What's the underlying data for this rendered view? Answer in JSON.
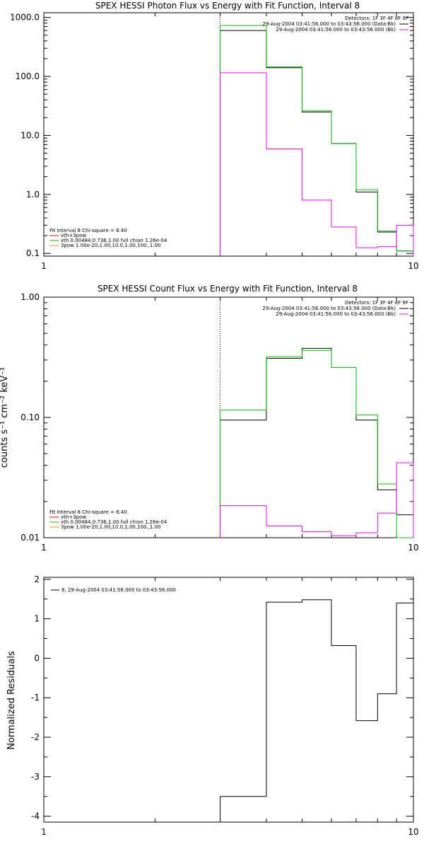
{
  "chart_data": [
    {
      "type": "line",
      "title": "SPEX HESSI Photon Flux vs Energy with Fit Function, Interval 8",
      "xscale": "log",
      "yscale": "log",
      "xlim": [
        1,
        10
      ],
      "ylim": [
        0.09,
        1200
      ],
      "xticks": [
        "1",
        "10"
      ],
      "yticks": [
        {
          "v": 1000,
          "label": "1000.0"
        },
        {
          "v": 100,
          "label": "100.0"
        },
        {
          "v": 10,
          "label": "10.0"
        },
        {
          "v": 1,
          "label": "1.0"
        },
        {
          "v": 0.1,
          "label": "0.1"
        }
      ],
      "xlabel": "",
      "ylabel": "",
      "vline": 3.0,
      "legend_right": [
        "Detectors: 1F 3F 4F 8F 9F",
        "29-Aug-2004 03:41:56.000 to 03:43:56.000 (Data-Bk)",
        "29-Aug-2004 03:41:56.000 to 03:43:56.000 (Bk)"
      ],
      "legend_left": [
        "Fit Interval 8   Chi-square = 8.40",
        "vth+3pow",
        "vth 0.00484,0.736,1.00  full chian 1.26e-04",
        "3pow 1.00e-20,1.00,10.0,1.00,100.,1.00"
      ],
      "edges": [
        3.0,
        4.0,
        5.0,
        6.0,
        7.0,
        8.0,
        9.0,
        10.0
      ],
      "series": [
        {
          "color": "#000000",
          "values": [
            600,
            140,
            25,
            7.3,
            1.1,
            0.23,
            0.11
          ]
        },
        {
          "color": "#00cc00",
          "values": [
            730,
            145,
            26,
            7.3,
            1.2,
            0.24,
            0.11
          ]
        },
        {
          "color": "#ff00ff",
          "values": [
            115,
            5.9,
            0.8,
            0.28,
            0.125,
            0.13,
            0.3
          ]
        }
      ]
    },
    {
      "type": "line",
      "title": "SPEX HESSI Count Flux vs Energy with Fit Function, Interval 8",
      "xscale": "log",
      "yscale": "log",
      "xlim": [
        1,
        10
      ],
      "ylim": [
        0.01,
        1.0
      ],
      "xticks": [
        "1",
        "10"
      ],
      "yticks": [
        {
          "v": 1.0,
          "label": "1.00"
        },
        {
          "v": 0.1,
          "label": "0.10"
        },
        {
          "v": 0.01,
          "label": "0.01"
        }
      ],
      "xlabel": "",
      "ylabel": "counts s⁻¹ cm⁻² keV⁻¹",
      "vline": 3.0,
      "legend_right": [
        "Detectors: 1F 3F 4F 8F 9F",
        "29-Aug-2004 03:41:56.000 to 03:43:56.000 (Data-Bk)",
        "29-Aug-2004 03:41:56.000 to 03:43:56.000 (Bk)"
      ],
      "legend_left": [
        "Fit Interval 8   Chi-square = 8.40",
        "vth+3pow",
        "vth 0.00484,0.736,1.00  full chian 1.26e-04",
        "3pow 1.00e-20,1.00,10.0,1.00,100.,1.00"
      ],
      "edges": [
        3.0,
        4.0,
        5.0,
        6.0,
        7.0,
        8.0,
        9.0,
        10.0
      ],
      "series": [
        {
          "color": "#000000",
          "values": [
            0.095,
            0.31,
            0.375,
            0.26,
            0.095,
            0.025,
            0.0155
          ]
        },
        {
          "color": "#00cc00",
          "values": [
            0.115,
            0.32,
            0.36,
            0.26,
            0.105,
            0.028,
            0.0095
          ]
        },
        {
          "color": "#ff00ff",
          "values": [
            0.0185,
            0.0125,
            0.0112,
            0.0104,
            0.011,
            0.016,
            0.042
          ]
        }
      ]
    },
    {
      "type": "line",
      "title": "",
      "xscale": "log",
      "yscale": "linear",
      "xlim": [
        1,
        10
      ],
      "ylim": [
        -4.15,
        2.05
      ],
      "xticks": [
        "1",
        "10"
      ],
      "yticks": [
        {
          "v": 2,
          "label": "2"
        },
        {
          "v": 1,
          "label": "1"
        },
        {
          "v": 0,
          "label": "0"
        },
        {
          "v": -1,
          "label": "-1"
        },
        {
          "v": -2,
          "label": "-2"
        },
        {
          "v": -3,
          "label": "-3"
        },
        {
          "v": -4,
          "label": "-4"
        }
      ],
      "xlabel": "",
      "ylabel": "Normalized Residuals",
      "legend_left": [
        "8, 29-Aug-2004 03:41:56.000 to 03:43:56.000"
      ],
      "edges": [
        3.0,
        4.0,
        5.0,
        6.0,
        7.0,
        8.0,
        9.0,
        10.0
      ],
      "series": [
        {
          "color": "#000000",
          "values": [
            -3.5,
            1.42,
            1.48,
            0.32,
            -1.58,
            -0.9,
            1.4
          ]
        }
      ]
    }
  ]
}
